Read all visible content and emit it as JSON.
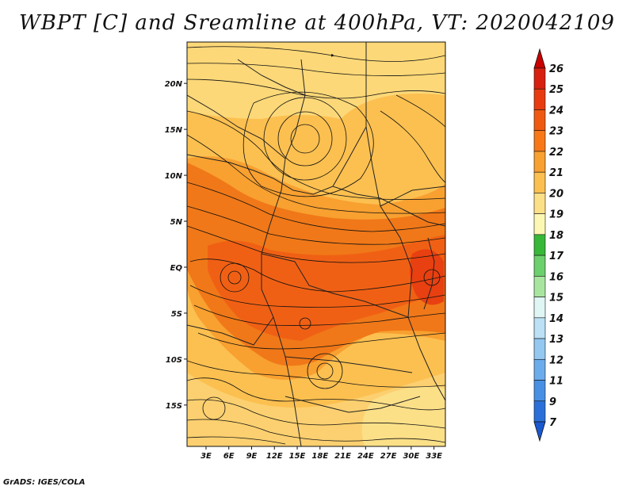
{
  "title": "WBPT [C] and Sreamline at 400hPa, VT: 2020042109",
  "credit": "GrADS: IGES/COLA",
  "map": {
    "lat_labels": [
      "20N",
      "15N",
      "10N",
      "5N",
      "EQ",
      "5S",
      "10S",
      "15S"
    ],
    "lat_values": [
      20,
      15,
      10,
      5,
      0,
      -5,
      -10,
      -15
    ],
    "lon_labels": [
      "3E",
      "6E",
      "9E",
      "12E",
      "15E",
      "18E",
      "21E",
      "24E",
      "27E",
      "30E",
      "33E"
    ],
    "lon_values": [
      3,
      6,
      9,
      12,
      15,
      18,
      21,
      24,
      27,
      30,
      33
    ],
    "lon_range": [
      0.5,
      34.5
    ],
    "lat_range": [
      -19.5,
      24.5
    ]
  },
  "colorbar": {
    "labels": [
      "26",
      "25",
      "24",
      "23",
      "22",
      "21",
      "20",
      "19",
      "18",
      "17",
      "16",
      "15",
      "14",
      "13",
      "12",
      "11",
      "9",
      "7"
    ],
    "colors": [
      "#c80000",
      "#d82010",
      "#e83c10",
      "#f05a10",
      "#f87818",
      "#f8a030",
      "#fcc050",
      "#fce088",
      "#fcf8b4",
      "#38b838",
      "#6cd06c",
      "#a8e6a0",
      "#e0f6f4",
      "#bce0f4",
      "#94c8f0",
      "#6cacec",
      "#4890e4",
      "#2a70d8",
      "#1a58d0"
    ]
  }
}
